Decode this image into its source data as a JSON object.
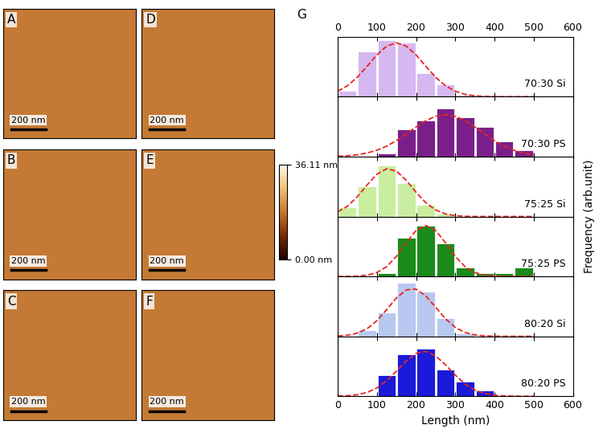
{
  "images": {
    "panels": [
      "A",
      "B",
      "C",
      "D",
      "E",
      "F"
    ],
    "scale_bar": "200 nm"
  },
  "colorbar": {
    "range": [
      0,
      36.11
    ],
    "ticks": [
      {
        "value": 0,
        "label": "0.00 nm"
      },
      {
        "value": 36.11,
        "label": "36.11 nm"
      }
    ]
  },
  "chart_data": {
    "type": "histogram",
    "label": "G",
    "xlabel": "Length (nm)",
    "ylabel": "Frequency (arb.unit)",
    "xlim": [
      0,
      600
    ],
    "xticks": [
      0,
      100,
      200,
      300,
      400,
      500,
      600
    ],
    "ylim": [
      0,
      10
    ],
    "tick_labels": "x",
    "grid": false,
    "bins": [
      0,
      50,
      100,
      150,
      200,
      250,
      300,
      350,
      400,
      450,
      500
    ],
    "series": [
      {
        "name": "70:30 Si",
        "color": "#d6b8f0",
        "values": [
          1,
          7.5,
          9.5,
          9,
          4,
          2,
          0.3,
          0,
          0,
          0
        ],
        "fit": {
          "color": "#e8251f",
          "line_style": "dashed",
          "x": [
            0,
            25,
            50,
            75,
            100,
            125,
            150,
            175,
            200,
            225,
            250,
            275,
            300,
            325,
            350,
            375,
            400,
            425,
            450,
            475,
            500
          ],
          "y": [
            0.91,
            1.83,
            3.24,
            5.07,
            6.98,
            8.44,
            9,
            8.44,
            6.98,
            5.07,
            3.24,
            1.83,
            0.91,
            0.4,
            0.15,
            0.05,
            0.02,
            0,
            0,
            0,
            0
          ]
        }
      },
      {
        "name": "70:30 PS",
        "color": "#7a1f8a",
        "values": [
          0,
          0,
          0.5,
          4.5,
          6,
          8,
          6.5,
          5,
          2.5,
          1
        ],
        "fit": {
          "color": "#e8251f",
          "line_style": "dashed",
          "x": [
            0,
            25,
            50,
            75,
            100,
            125,
            150,
            175,
            200,
            225,
            250,
            275,
            300,
            325,
            350,
            375,
            400,
            425,
            450,
            475,
            500
          ],
          "y": [
            0.07,
            0.15,
            0.31,
            0.6,
            1.06,
            1.74,
            2.67,
            3.77,
            4.95,
            6.0,
            6.73,
            7,
            6.73,
            6.0,
            4.95,
            3.77,
            2.67,
            1.74,
            1.06,
            0.6,
            0.31
          ]
        }
      },
      {
        "name": "75:25 Si",
        "color": "#c9eea0",
        "values": [
          1.5,
          5,
          8.5,
          5.5,
          2,
          0.5,
          0,
          0,
          0,
          0
        ],
        "fit": {
          "color": "#e8251f",
          "line_style": "dashed",
          "x": [
            0,
            25,
            50,
            75,
            100,
            125,
            150,
            175,
            200,
            225,
            250,
            275,
            300,
            325,
            350,
            375,
            400,
            425,
            450,
            475,
            500
          ],
          "y": [
            0.77,
            1.73,
            3.29,
            5.26,
            7.06,
            7.97,
            7.57,
            6.04,
            4.05,
            2.29,
            1.08,
            0.43,
            0.15,
            0.04,
            0,
            0,
            0,
            0,
            0,
            0,
            0
          ]
        }
      },
      {
        "name": "75:25 PS",
        "color": "#1a8a1a",
        "values": [
          0,
          0,
          0.5,
          6.5,
          8.5,
          5.5,
          1.5,
          0.5,
          0.5,
          1.5
        ],
        "fit": {
          "color": "#e8251f",
          "line_style": "dashed",
          "x": [
            0,
            25,
            50,
            75,
            100,
            125,
            150,
            175,
            200,
            225,
            250,
            275,
            300,
            325,
            350,
            375,
            400,
            425,
            450,
            475,
            500
          ],
          "y": [
            0,
            0.01,
            0.05,
            0.21,
            0.64,
            1.63,
            3.35,
            5.62,
            7.67,
            8.5,
            7.67,
            5.62,
            3.35,
            1.63,
            0.64,
            0.21,
            0.05,
            0.01,
            0,
            0,
            0
          ]
        }
      },
      {
        "name": "80:20 Si",
        "color": "#b8c8f0",
        "values": [
          0,
          1,
          4,
          9,
          7.5,
          3,
          0.5,
          0,
          0,
          0
        ],
        "fit": {
          "color": "#e8251f",
          "line_style": "dashed",
          "x": [
            0,
            25,
            50,
            75,
            100,
            125,
            150,
            175,
            200,
            225,
            250,
            275,
            300,
            325,
            350,
            375,
            400,
            425,
            450,
            475,
            500
          ],
          "y": [
            0.05,
            0.18,
            0.53,
            1.27,
            2.6,
            4.45,
            6.41,
            7.75,
            7.89,
            6.75,
            4.85,
            2.93,
            1.49,
            0.64,
            0.23,
            0.07,
            0.02,
            0,
            0,
            0,
            0
          ]
        }
      },
      {
        "name": "80:20 PS",
        "color": "#1a1ad8",
        "values": [
          0,
          0,
          3.5,
          7,
          8,
          4.5,
          2.5,
          1,
          0,
          0
        ],
        "fit": {
          "color": "#e8251f",
          "line_style": "dashed",
          "x": [
            0,
            25,
            50,
            75,
            100,
            125,
            150,
            175,
            200,
            225,
            250,
            275,
            300,
            325,
            350,
            375,
            400,
            425,
            450,
            475,
            500
          ],
          "y": [
            0.02,
            0.08,
            0.25,
            0.62,
            1.37,
            2.58,
            4.2,
            5.9,
            7.15,
            7.48,
            6.74,
            5.24,
            3.52,
            2.03,
            1.02,
            0.44,
            0.16,
            0.05,
            0.01,
            0,
            0
          ]
        }
      }
    ]
  }
}
